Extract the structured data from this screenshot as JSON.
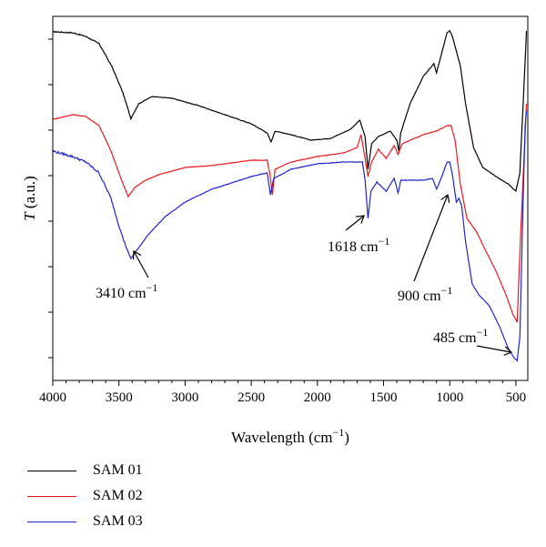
{
  "chart_data": {
    "type": "line",
    "xlabel": "Wavelength (cm",
    "xlabel_sup": "−1",
    "xlabel_end": ")",
    "ylabel": "T",
    "ylabel_rest": " (a.u.)",
    "xlim": [
      4000,
      410
    ],
    "x_reversed": true,
    "x_ticks": [
      4000,
      3500,
      3000,
      2500,
      2000,
      1500,
      1000,
      500
    ],
    "y_ticks_count": 8,
    "y_tick_labels": false,
    "ylim": [
      0,
      1
    ],
    "legend_position": "bottom-left, below plot",
    "series": [
      {
        "name": "SAM 01",
        "color": "#000000",
        "points": [
          [
            4000,
            0.958
          ],
          [
            3850,
            0.955
          ],
          [
            3750,
            0.945
          ],
          [
            3650,
            0.925
          ],
          [
            3550,
            0.86
          ],
          [
            3470,
            0.79
          ],
          [
            3410,
            0.72
          ],
          [
            3350,
            0.76
          ],
          [
            3250,
            0.78
          ],
          [
            3100,
            0.775
          ],
          [
            2900,
            0.755
          ],
          [
            2700,
            0.73
          ],
          [
            2500,
            0.705
          ],
          [
            2380,
            0.68
          ],
          [
            2350,
            0.655
          ],
          [
            2320,
            0.685
          ],
          [
            2200,
            0.675
          ],
          [
            2050,
            0.66
          ],
          [
            1900,
            0.665
          ],
          [
            1750,
            0.69
          ],
          [
            1680,
            0.715
          ],
          [
            1640,
            0.67
          ],
          [
            1618,
            0.58
          ],
          [
            1590,
            0.65
          ],
          [
            1540,
            0.67
          ],
          [
            1450,
            0.685
          ],
          [
            1400,
            0.66
          ],
          [
            1385,
            0.63
          ],
          [
            1370,
            0.68
          ],
          [
            1300,
            0.76
          ],
          [
            1200,
            0.835
          ],
          [
            1120,
            0.87
          ],
          [
            1100,
            0.845
          ],
          [
            1060,
            0.9
          ],
          [
            1020,
            0.955
          ],
          [
            1000,
            0.96
          ],
          [
            980,
            0.945
          ],
          [
            920,
            0.865
          ],
          [
            880,
            0.76
          ],
          [
            820,
            0.64
          ],
          [
            750,
            0.585
          ],
          [
            650,
            0.56
          ],
          [
            560,
            0.54
          ],
          [
            500,
            0.52
          ],
          [
            470,
            0.57
          ],
          [
            440,
            0.8
          ],
          [
            420,
            0.96
          ]
        ]
      },
      {
        "name": "SAM 02",
        "color": "#e8191e",
        "points": [
          [
            4000,
            0.717
          ],
          [
            3850,
            0.73
          ],
          [
            3750,
            0.725
          ],
          [
            3650,
            0.7
          ],
          [
            3560,
            0.63
          ],
          [
            3490,
            0.56
          ],
          [
            3430,
            0.505
          ],
          [
            3380,
            0.53
          ],
          [
            3300,
            0.55
          ],
          [
            3200,
            0.565
          ],
          [
            3000,
            0.585
          ],
          [
            2800,
            0.59
          ],
          [
            2500,
            0.605
          ],
          [
            2380,
            0.605
          ],
          [
            2360,
            0.57
          ],
          [
            2340,
            0.51
          ],
          [
            2320,
            0.58
          ],
          [
            2200,
            0.6
          ],
          [
            2000,
            0.615
          ],
          [
            1800,
            0.625
          ],
          [
            1700,
            0.64
          ],
          [
            1670,
            0.675
          ],
          [
            1640,
            0.61
          ],
          [
            1618,
            0.56
          ],
          [
            1590,
            0.6
          ],
          [
            1540,
            0.635
          ],
          [
            1480,
            0.61
          ],
          [
            1420,
            0.645
          ],
          [
            1390,
            0.62
          ],
          [
            1360,
            0.65
          ],
          [
            1200,
            0.675
          ],
          [
            1100,
            0.685
          ],
          [
            1020,
            0.7
          ],
          [
            990,
            0.7
          ],
          [
            960,
            0.66
          ],
          [
            920,
            0.54
          ],
          [
            870,
            0.445
          ],
          [
            800,
            0.41
          ],
          [
            720,
            0.35
          ],
          [
            650,
            0.3
          ],
          [
            580,
            0.24
          ],
          [
            520,
            0.18
          ],
          [
            490,
            0.16
          ],
          [
            470,
            0.35
          ],
          [
            440,
            0.6
          ],
          [
            420,
            0.76
          ]
        ]
      },
      {
        "name": "SAM 03",
        "color": "#1e25c8",
        "points": [
          [
            4000,
            0.63
          ],
          [
            3850,
            0.615
          ],
          [
            3750,
            0.6
          ],
          [
            3650,
            0.57
          ],
          [
            3560,
            0.5
          ],
          [
            3500,
            0.425
          ],
          [
            3450,
            0.37
          ],
          [
            3410,
            0.335
          ],
          [
            3360,
            0.36
          ],
          [
            3280,
            0.4
          ],
          [
            3150,
            0.45
          ],
          [
            3000,
            0.49
          ],
          [
            2800,
            0.525
          ],
          [
            2500,
            0.56
          ],
          [
            2380,
            0.57
          ],
          [
            2355,
            0.51
          ],
          [
            2330,
            0.555
          ],
          [
            2200,
            0.58
          ],
          [
            2000,
            0.595
          ],
          [
            1800,
            0.6
          ],
          [
            1700,
            0.6
          ],
          [
            1660,
            0.6
          ],
          [
            1640,
            0.55
          ],
          [
            1618,
            0.445
          ],
          [
            1595,
            0.52
          ],
          [
            1550,
            0.545
          ],
          [
            1480,
            0.52
          ],
          [
            1420,
            0.555
          ],
          [
            1390,
            0.515
          ],
          [
            1370,
            0.55
          ],
          [
            1200,
            0.55
          ],
          [
            1130,
            0.555
          ],
          [
            1100,
            0.525
          ],
          [
            1060,
            0.56
          ],
          [
            1020,
            0.6
          ],
          [
            1000,
            0.6
          ],
          [
            980,
            0.565
          ],
          [
            950,
            0.49
          ],
          [
            930,
            0.5
          ],
          [
            910,
            0.48
          ],
          [
            880,
            0.38
          ],
          [
            830,
            0.265
          ],
          [
            780,
            0.235
          ],
          [
            700,
            0.205
          ],
          [
            620,
            0.145
          ],
          [
            560,
            0.09
          ],
          [
            510,
            0.06
          ],
          [
            490,
            0.055
          ],
          [
            470,
            0.12
          ],
          [
            445,
            0.5
          ],
          [
            430,
            0.7
          ],
          [
            420,
            0.74
          ]
        ]
      }
    ],
    "annotations": [
      {
        "label": "3410 cm",
        "sup": "−1"
      },
      {
        "label": "1618 cm",
        "sup": "−1"
      },
      {
        "label": "900 cm",
        "sup": "−1"
      },
      {
        "label": "485 cm",
        "sup": "−1"
      }
    ]
  }
}
